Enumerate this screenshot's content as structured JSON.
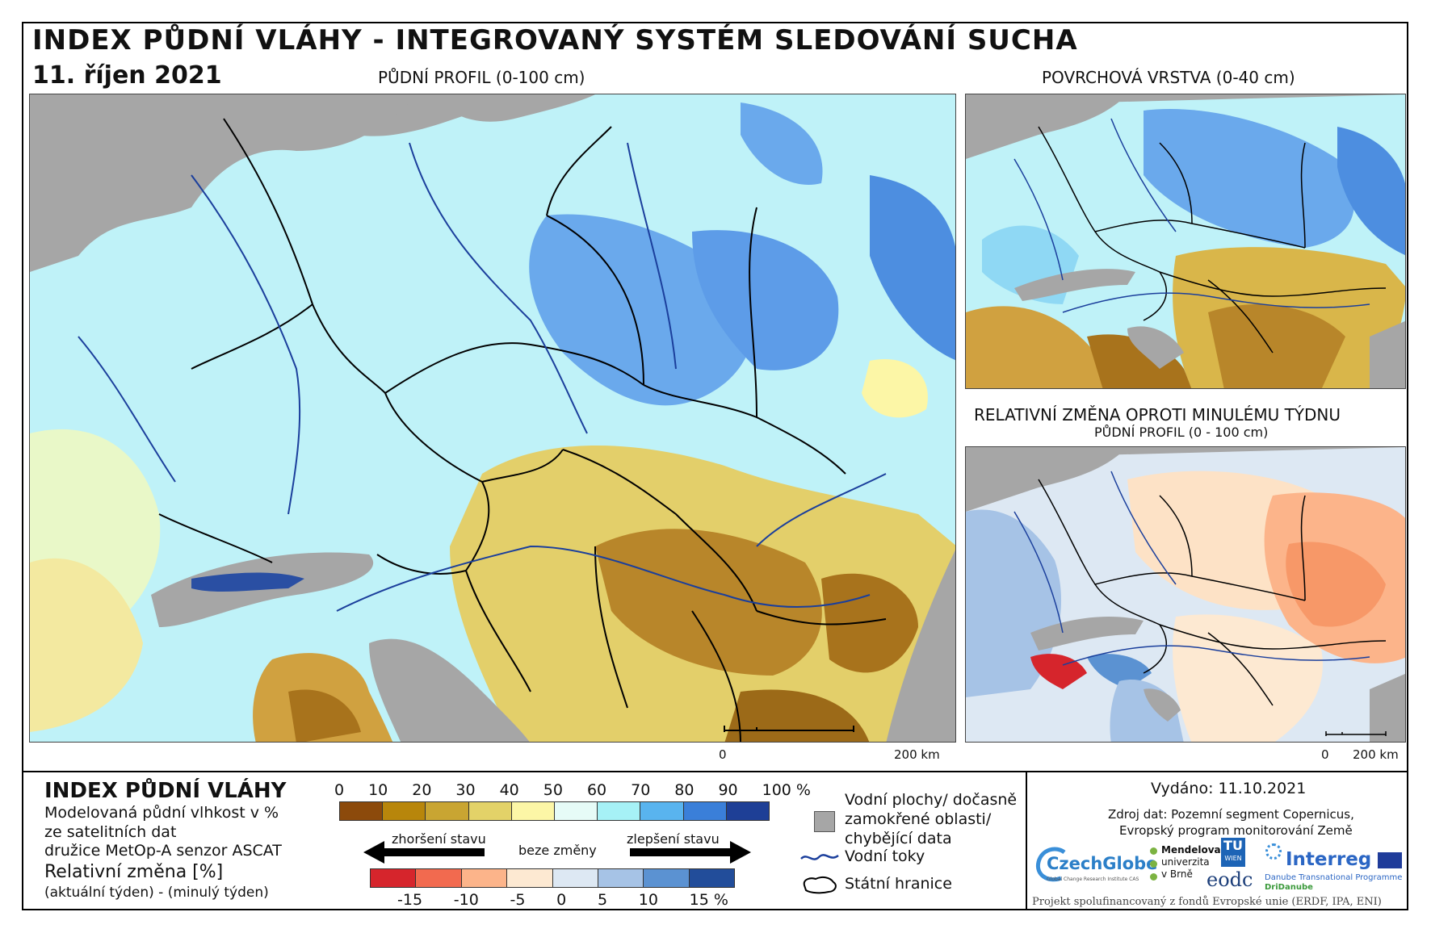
{
  "header": {
    "title": "INDEX PŮDNÍ VLÁHY - INTEGROVANÝ SYSTÉM SLEDOVÁNÍ SUCHA",
    "date": "11. říjen 2021"
  },
  "maps": {
    "main_title": "PŮDNÍ PROFIL (0-100 cm)",
    "surface_title": "POVRCHOVÁ VRSTVA (0-40 cm)",
    "change_title": "RELATIVNÍ ZMĚNA OPROTI MINULÉMU TÝDNU",
    "change_subtitle": "PŮDNÍ PROFIL (0 - 100 cm)",
    "scale_main": {
      "zero": "0",
      "label": "200 km"
    },
    "scale_small": {
      "zero": "0",
      "label": "200 km"
    }
  },
  "legend": {
    "index_title": "INDEX PŮDNÍ VLÁHY",
    "index_desc1": "Modelovaná půdní vlhkost v %",
    "index_desc2": "ze satelitních dat",
    "index_desc3": "družice MetOp-A senzor ASCAT",
    "change_title": "Relativní změna [%]",
    "change_desc": "(aktuální týden) - (minulý týden)",
    "index_ticks": [
      "0",
      "10",
      "20",
      "30",
      "40",
      "50",
      "60",
      "70",
      "80",
      "90",
      "100 %"
    ],
    "index_colors": [
      "#8c4a0b",
      "#b8860b",
      "#c9a532",
      "#e3d268",
      "#fcf6a6",
      "#e6fbf7",
      "#a6f1f6",
      "#59b4ef",
      "#3a7fd9",
      "#1e3f96"
    ],
    "arrow_worse": "zhoršení stavu",
    "arrow_none": "beze změny",
    "arrow_better": "zlepšení stavu",
    "change_ticks": [
      "-15",
      "-10",
      "-5",
      "0",
      "5",
      "10",
      "15 %"
    ],
    "change_colors": [
      "#d6252c",
      "#f26a4f",
      "#fcb48a",
      "#fde9d2",
      "#dde8f3",
      "#a6c3e6",
      "#5b92d2",
      "#224d9a"
    ],
    "water_label_1": "Vodní plochy/ dočasně",
    "water_label_2": "zamokřené oblasti/",
    "water_label_3": "chybějící data",
    "rivers_label": "Vodní toky",
    "borders_label": "Státní hranice"
  },
  "info": {
    "issued": "Vydáno: 11.10.2021",
    "source1": "Zdroj dat: Pozemní segment Copernicus,",
    "source2": "Evropský program monitorování Země",
    "logo_czechglobe": "CzechGlobe",
    "logo_czechglobe_sub": "Global Change Research Institute CAS",
    "logo_mendelu_1": "Mendelova",
    "logo_mendelu_2": "univerzita",
    "logo_mendelu_3": "v Brně",
    "logo_tu_1": "TU",
    "logo_tu_2": "WIEN",
    "logo_eodc": "eodc",
    "logo_interreg": "Interreg",
    "logo_interreg_sub1": "Danube Transnational Programme",
    "logo_interreg_sub2": "DriDanube",
    "funding": "Projekt spolufinancovaný z fondů Evropské unie (ERDF, IPA, ENI)"
  }
}
